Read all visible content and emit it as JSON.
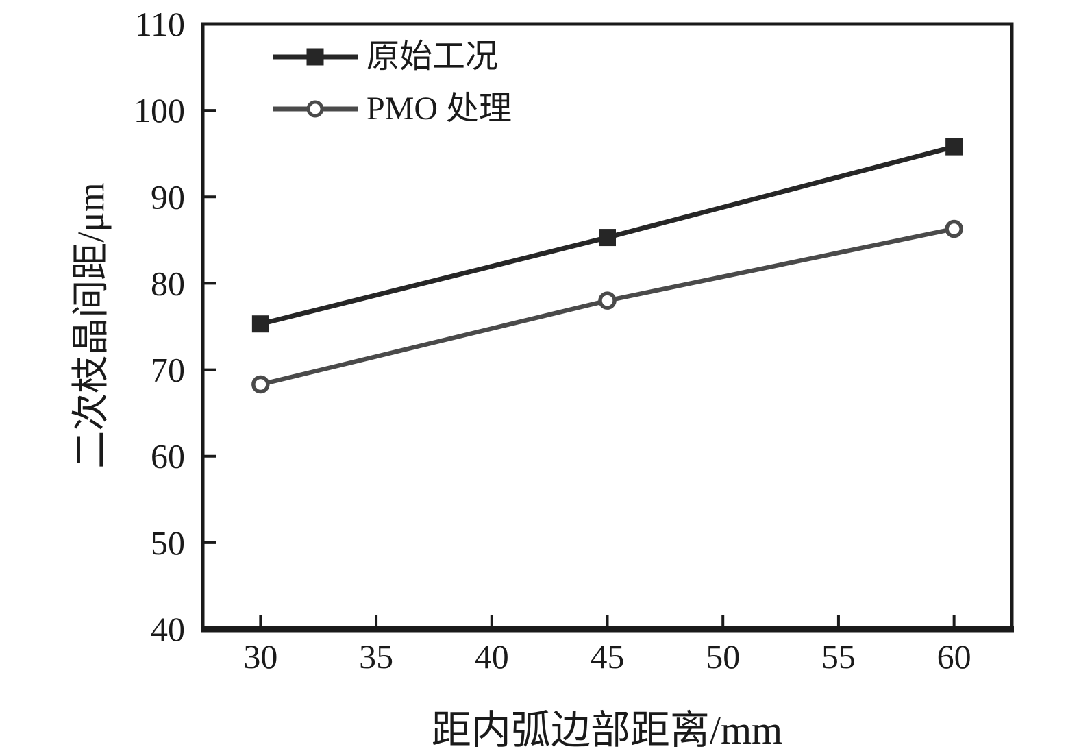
{
  "chart_data": {
    "type": "line",
    "title": "",
    "xlabel": "距内弧边部距离/mm",
    "ylabel": "二次枝晶间距/μm",
    "x": [
      30,
      45,
      60
    ],
    "series": [
      {
        "name": "原始工况",
        "marker": "filled-square",
        "color": "#262626",
        "line_width": 7,
        "values": [
          75.3,
          85.3,
          95.8
        ]
      },
      {
        "name": "PMO 处理",
        "marker": "open-circle",
        "color": "#4a4a4a",
        "line_width": 6.5,
        "values": [
          68.3,
          78.0,
          86.3
        ]
      }
    ],
    "xlim": [
      27.5,
      62.5
    ],
    "ylim": [
      40,
      110
    ],
    "x_ticks": [
      30,
      35,
      40,
      45,
      50,
      55,
      60
    ],
    "y_ticks": [
      40,
      50,
      60,
      70,
      80,
      90,
      100,
      110
    ],
    "grid": false,
    "legend_position": "top-left"
  },
  "colors": {
    "axis": "#1a1a1a",
    "text": "#1a1a1a",
    "background": "#ffffff"
  }
}
